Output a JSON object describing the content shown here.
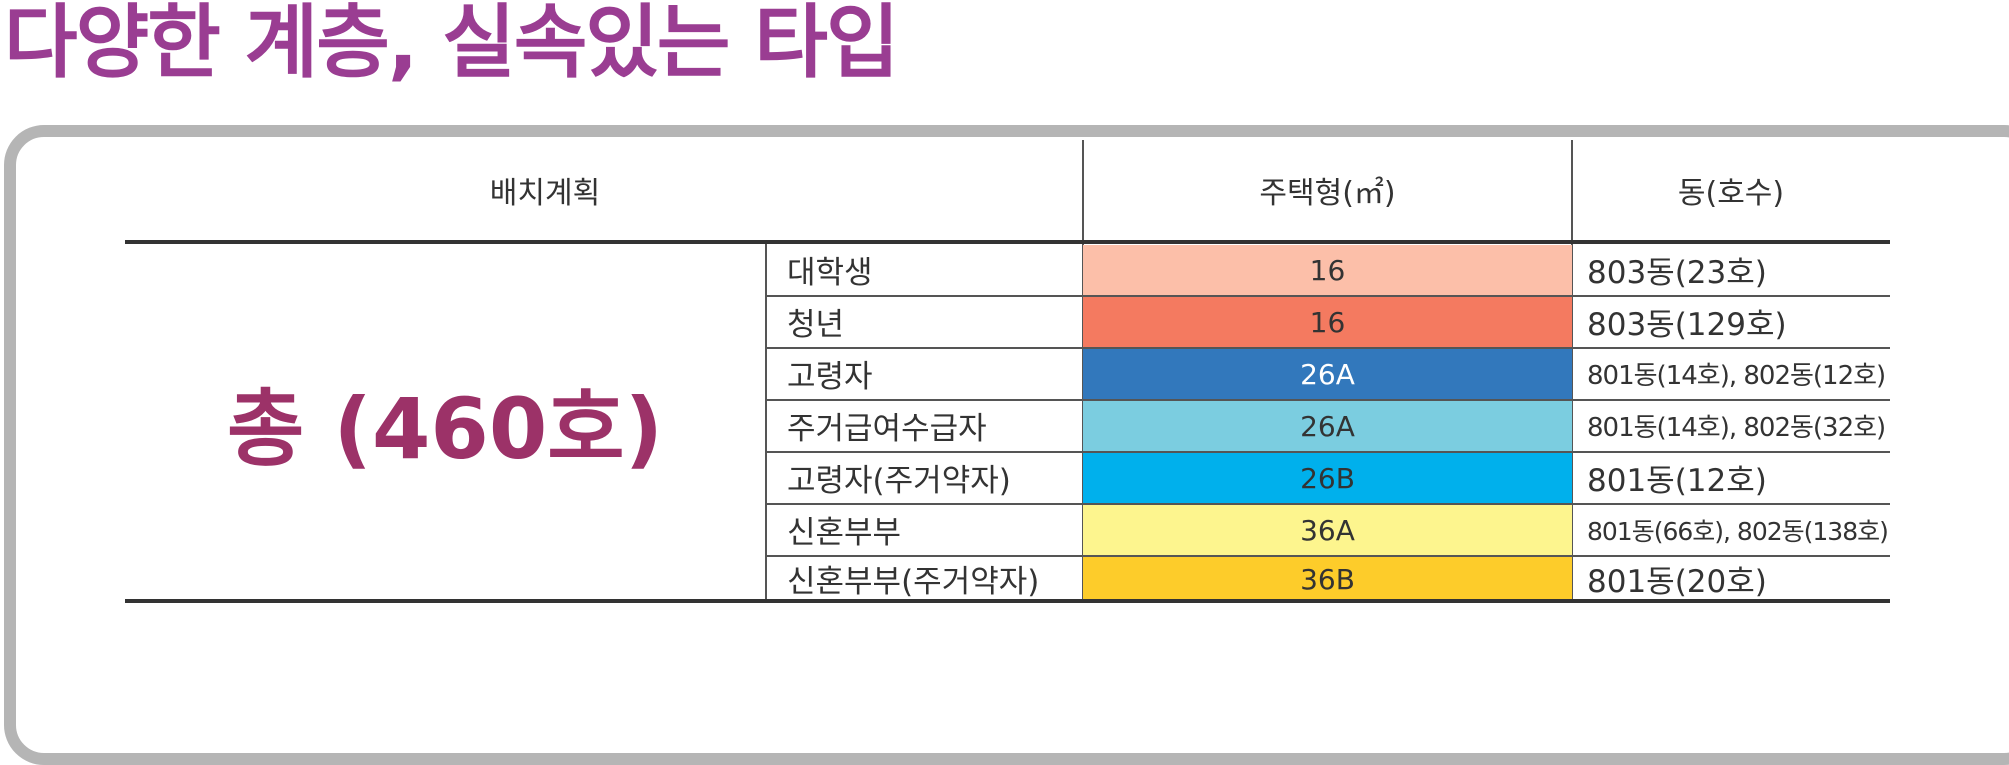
{
  "page": {
    "title": "다양한 계층, 실속있는 타입"
  },
  "table": {
    "headers": {
      "plan": "배치계획",
      "type": "주택형(㎡)",
      "building": "동(호수)"
    },
    "total_label": "총 (460호)",
    "rows": [
      {
        "category": "대학생",
        "type": "16",
        "building": "803동(23호)",
        "color": "#fcbfa9",
        "text_color": "#333333"
      },
      {
        "category": "청년",
        "type": "16",
        "building": "803동(129호)",
        "color": "#f47a60",
        "text_color": "#333333"
      },
      {
        "category": "고령자",
        "type": "26A",
        "building": "801동(14호), 802동(12호)",
        "color": "#3278bc",
        "text_color": "#ffffff"
      },
      {
        "category": "주거급여수급자",
        "type": "26A",
        "building": "801동(14호), 802동(32호)",
        "color": "#7bcde0",
        "text_color": "#333333"
      },
      {
        "category": "고령자(주거약자)",
        "type": "26B",
        "building": "801동(12호)",
        "color": "#00b0ec",
        "text_color": "#333333"
      },
      {
        "category": "신혼부부",
        "type": "36A",
        "building": "801동(66호), 802동(138호)",
        "color": "#fdf58e",
        "text_color": "#333333"
      },
      {
        "category": "신혼부부(주거약자)",
        "type": "36B",
        "building": "801동(20호)",
        "color": "#fdcc2a",
        "text_color": "#333333"
      }
    ]
  }
}
